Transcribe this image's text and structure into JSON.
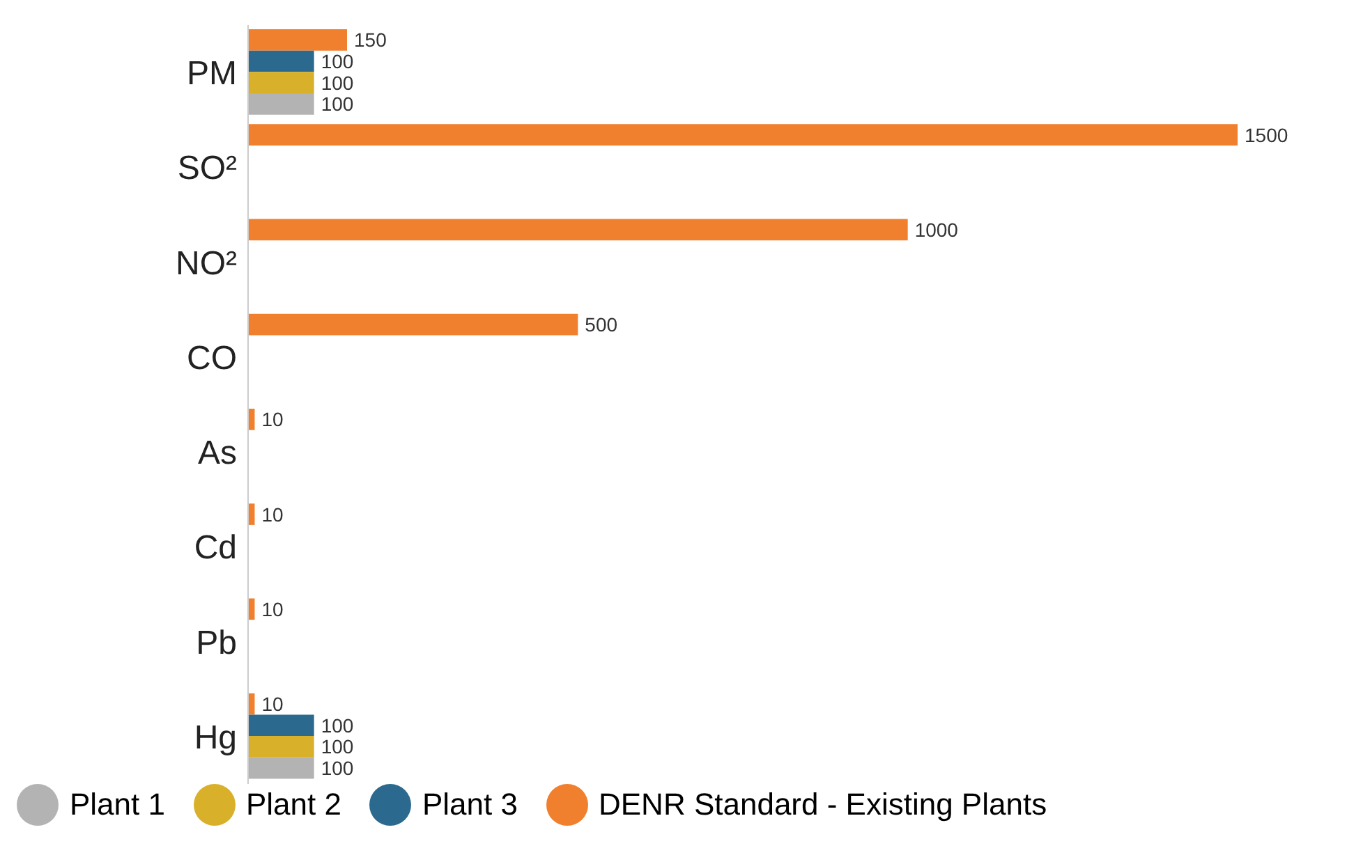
{
  "chart_data": {
    "type": "bar",
    "orientation": "horizontal",
    "categories": [
      "PM",
      "SO²",
      "NO²",
      "CO",
      "As",
      "Cd",
      "Pb",
      "Hg"
    ],
    "series": [
      {
        "name": "Plant 1",
        "color": "#b3b3b3",
        "values": [
          100,
          null,
          null,
          null,
          null,
          null,
          null,
          100
        ]
      },
      {
        "name": "Plant 2",
        "color": "#d9b02a",
        "values": [
          100,
          null,
          null,
          null,
          null,
          null,
          null,
          100
        ]
      },
      {
        "name": "Plant 3",
        "color": "#2b6a8e",
        "values": [
          100,
          null,
          null,
          null,
          null,
          null,
          null,
          100
        ]
      },
      {
        "name": "DENR Standard - Existing Plants",
        "color": "#f07f2e",
        "values": [
          150,
          1500,
          1000,
          500,
          10,
          10,
          10,
          10
        ]
      }
    ],
    "data_labels": true,
    "legend": "bottom",
    "grid": false
  }
}
